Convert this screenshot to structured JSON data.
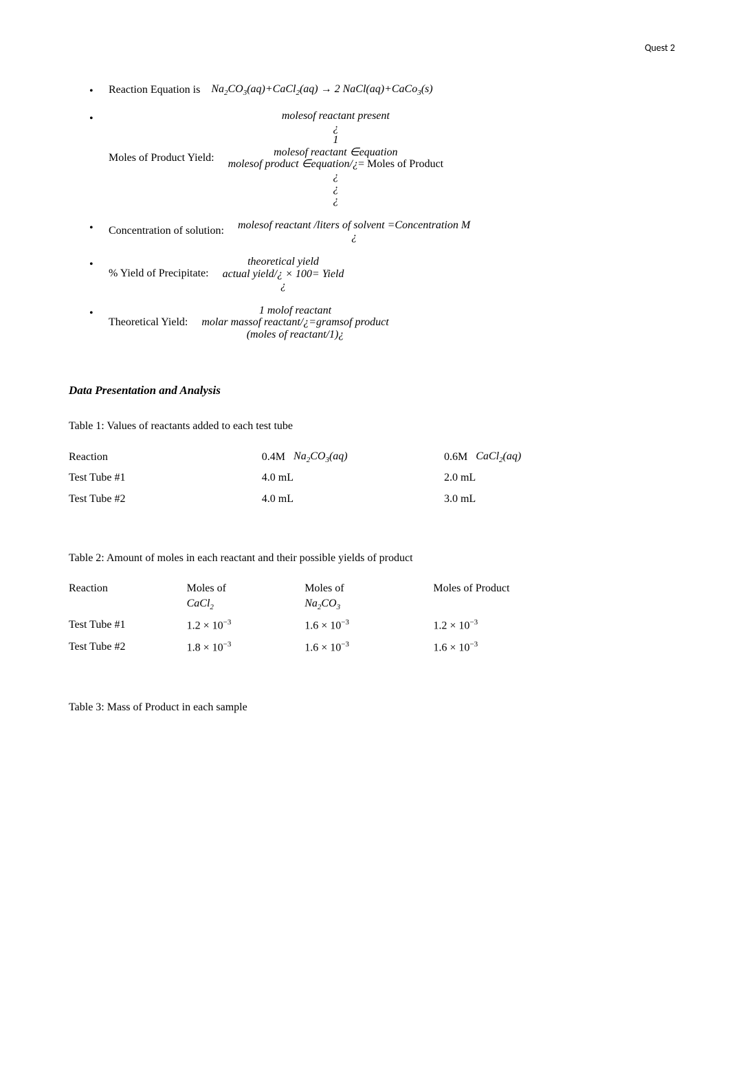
{
  "header": {
    "label": "Quest 2"
  },
  "bullets": {
    "reaction_equation": {
      "label": "Reaction Equation is",
      "formula_html": "<i>Na</i><span class='sub'>2</span><i>CO</i><span class='sub'>3</span>(<i>aq</i>)+<i>CaCl</i><span class='sub'>2</span>(<i>aq</i>) → 2 <i>NaCl</i>(<i>aq</i>)+<i>CaCo</i><span class='sub'>3</span>(<i>s</i>)"
    },
    "moles_product_yield": {
      "label": "Moles of Product Yield:",
      "stack_lines": [
        "molesof reactant present",
        "¿",
        "1",
        "molesof reactant ∈equation"
      ],
      "bottom_line_prefix": "molesof product ∈equation/¿",
      "bottom_line_suffix": "= Moles of Product",
      "tail": [
        "¿",
        "¿",
        "¿"
      ]
    },
    "concentration": {
      "label": "Concentration of solution:",
      "formula_top": "molesof reactant /liters of solvent =Concentration M",
      "formula_below": "¿"
    },
    "percent_yield": {
      "label": "% Yield of Precipitate:",
      "stack_lines": [
        "theoretical yield",
        "actual yield/¿ × 100= Yield",
        "¿"
      ]
    },
    "theoretical_yield": {
      "label": "Theoretical Yield:",
      "stack_lines": [
        "1 molof reactant",
        "molar massof reactant/¿=gramsof product",
        "(moles of reactant/1)¿"
      ]
    }
  },
  "section_heading": "Data Presentation and Analysis",
  "table1": {
    "caption": "Table 1: Values of reactants added to each test tube",
    "headers": {
      "reaction": "Reaction",
      "col_a_prefix": "0.4M",
      "col_a_formula": "<i>Na</i><span class='sub'>2</span><i>CO</i><span class='sub'>3</span>(<i>aq</i>)",
      "col_b_prefix": "0.6M",
      "col_b_formula": "<i>CaCl</i><span class='sub'>2</span>(<i>aq</i>)"
    },
    "rows": [
      {
        "reaction": "Test Tube #1",
        "a": "4.0 mL",
        "b": "2.0 mL"
      },
      {
        "reaction": "Test Tube #2",
        "a": "4.0 mL",
        "b": "3.0 mL"
      }
    ]
  },
  "table2": {
    "caption": "Table 2: Amount of moles in each reactant and their possible yields of product",
    "headers": {
      "reaction": "Reaction",
      "col_a_line1": "Moles of",
      "col_a_formula": "<i>CaCl</i><span class='sub'>2</span>",
      "col_b_line1": "Moles of",
      "col_b_formula": "<i>Na</i><span class='sub'>2</span><i>CO</i><span class='sub'>3</span>",
      "col_c": "Moles of Product"
    },
    "rows": [
      {
        "reaction": "Test Tube #1",
        "a": "1.2 × 10<sup style='font-size:11px'>−3</sup>",
        "b": "1.6 × 10<sup style='font-size:11px'>−3</sup>",
        "c": "1.2 × 10<sup style='font-size:11px'>−3</sup>"
      },
      {
        "reaction": "Test Tube #2",
        "a": "1.8 × 10<sup style='font-size:11px'>−3</sup>",
        "b": "1.6 × 10<sup style='font-size:11px'>−3</sup>",
        "c": "1.6 × 10<sup style='font-size:11px'>−3</sup>"
      }
    ]
  },
  "table3": {
    "caption": "Table 3:  Mass of Product in each sample"
  }
}
